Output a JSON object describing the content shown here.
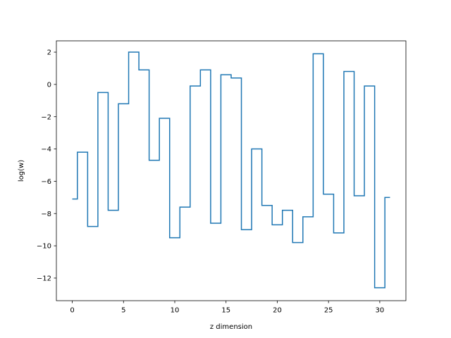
{
  "chart_data": {
    "type": "line",
    "step": "mid",
    "title": "",
    "xlabel": "z dimension",
    "ylabel": "log(w)",
    "xlim": [
      -1.55,
      32.55
    ],
    "ylim": [
      -13.4,
      2.7
    ],
    "xticks": [
      0,
      5,
      10,
      15,
      20,
      25,
      30
    ],
    "yticks": [
      2,
      0,
      -2,
      -4,
      -6,
      -8,
      -10,
      -12
    ],
    "xtick_labels": [
      "0",
      "5",
      "10",
      "15",
      "20",
      "25",
      "30"
    ],
    "ytick_labels": [
      "2",
      "0",
      "−2",
      "−4",
      "−6",
      "−8",
      "−10",
      "−12"
    ],
    "grid": false,
    "legend": "none",
    "line_color": "#1f77b4",
    "series": [
      {
        "x": [
          0,
          1,
          2,
          3,
          4,
          5,
          6,
          7,
          8,
          9,
          10,
          11,
          12,
          13,
          14,
          15,
          16,
          17,
          18,
          19,
          20,
          21,
          22,
          23,
          24,
          25,
          26,
          27,
          28,
          29,
          30,
          31
        ],
        "values": [
          -7.1,
          -4.2,
          -8.8,
          -0.5,
          -7.8,
          -1.2,
          2.0,
          0.9,
          -4.7,
          -2.1,
          -9.5,
          -7.6,
          -0.1,
          0.9,
          -8.6,
          0.6,
          0.4,
          -9.0,
          -4.0,
          -7.5,
          -8.7,
          -7.8,
          -9.8,
          -8.2,
          1.9,
          -6.8,
          -9.2,
          0.8,
          -6.9,
          -0.1,
          -12.6,
          -7.0
        ]
      }
    ]
  }
}
